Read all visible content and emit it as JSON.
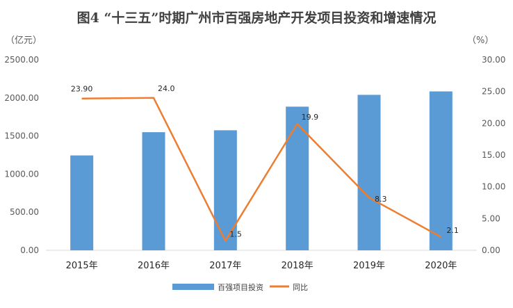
{
  "chart_data": {
    "type": "bar",
    "title": "图4 “十三五”时期广州市百强房地产开发项目投资和增速情况",
    "categories": [
      "2015年",
      "2016年",
      "2017年",
      "2018年",
      "2019年",
      "2020年"
    ],
    "left_axis": {
      "unit": "（亿元）",
      "ylim": [
        0,
        2500
      ],
      "ticks": [
        "0.00",
        "500.00",
        "1000.00",
        "1500.00",
        "2000.00",
        "2500.00"
      ]
    },
    "right_axis": {
      "unit": "（%）",
      "ylim": [
        0,
        30
      ],
      "ticks": [
        "0.00",
        "5.00",
        "10.00",
        "15.00",
        "20.00",
        "25.00",
        "30.00"
      ]
    },
    "series": [
      {
        "name": "百强项目投资",
        "type": "bar",
        "axis": "left",
        "color": "#5B9BD5",
        "values": [
          1245,
          1550,
          1575,
          1885,
          2040,
          2085
        ]
      },
      {
        "name": "同比",
        "type": "line",
        "axis": "right",
        "color": "#ED7D31",
        "values": [
          23.9,
          24.0,
          1.5,
          19.9,
          8.3,
          2.1
        ],
        "labels": [
          "23.90",
          "24.0",
          "1.5",
          "19.9",
          "8.3",
          "2.1"
        ]
      }
    ],
    "legend_position": "bottom",
    "grid": false
  }
}
